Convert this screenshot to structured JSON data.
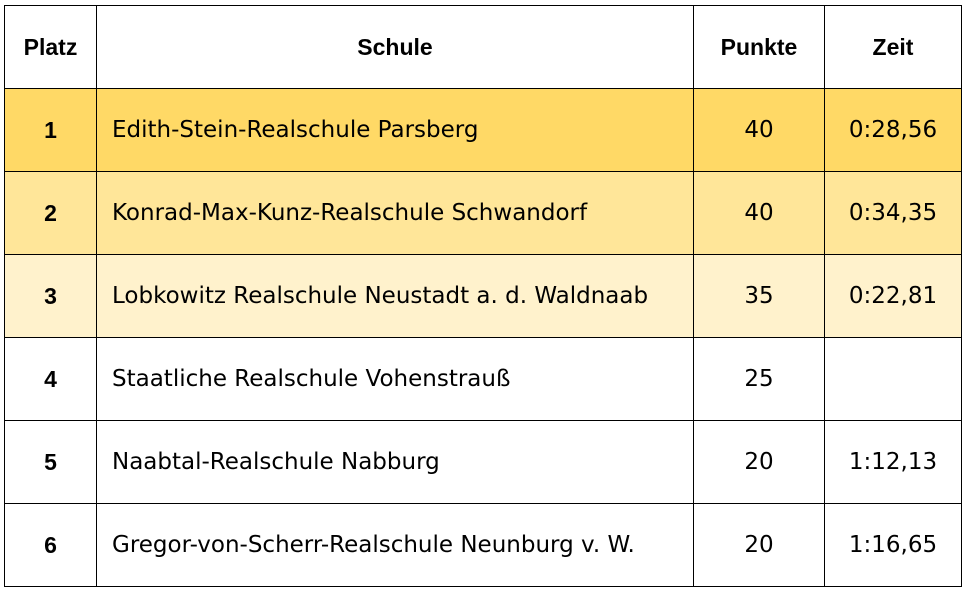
{
  "table": {
    "headers": {
      "platz": "Platz",
      "schule": "Schule",
      "punkte": "Punkte",
      "zeit": "Zeit"
    },
    "rows": [
      {
        "platz": "1",
        "schule": "Edith-Stein-Realschule Parsberg",
        "punkte": "40",
        "zeit": "0:28,56"
      },
      {
        "platz": "2",
        "schule": "Konrad-Max-Kunz-Realschule Schwandorf",
        "punkte": "40",
        "zeit": "0:34,35"
      },
      {
        "platz": "3",
        "schule": "Lobkowitz Realschule Neustadt a. d. Waldnaab",
        "punkte": "35",
        "zeit": "0:22,81"
      },
      {
        "platz": "4",
        "schule": "Staatliche Realschule Vohenstrauß",
        "punkte": "25",
        "zeit": ""
      },
      {
        "platz": "5",
        "schule": "Naabtal-Realschule Nabburg",
        "punkte": "20",
        "zeit": "1:12,13"
      },
      {
        "platz": "6",
        "schule": "Gregor-von-Scherr-Realschule Neunburg v. W.",
        "punkte": "20",
        "zeit": "1:16,65"
      }
    ],
    "row_colors": [
      "#ffd966",
      "#ffe699",
      "#fff2cc",
      "#ffffff",
      "#ffffff",
      "#ffffff"
    ]
  }
}
